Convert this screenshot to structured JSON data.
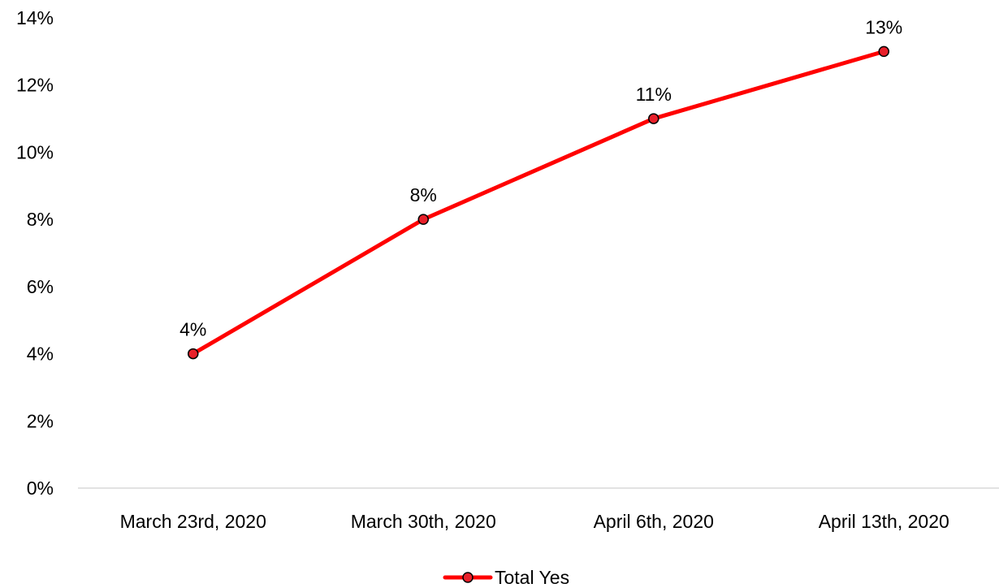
{
  "chart_data": {
    "type": "line",
    "title": "",
    "xlabel": "",
    "ylabel": "",
    "categories": [
      "March 23rd, 2020",
      "March 30th, 2020",
      "April 6th, 2020",
      "April 13th, 2020"
    ],
    "series": [
      {
        "name": "Total Yes",
        "values": [
          4,
          8,
          11,
          13
        ],
        "data_labels": [
          "4%",
          "8%",
          "11%",
          "13%"
        ],
        "color": "#ff0000",
        "marker_color": "#e8202a"
      }
    ],
    "ylim": [
      0,
      14
    ],
    "y_ticks": [
      0,
      2,
      4,
      6,
      8,
      10,
      12,
      14
    ],
    "y_tick_labels": [
      "0%",
      "2%",
      "4%",
      "6%",
      "8%",
      "10%",
      "12%",
      "14%"
    ],
    "grid": false,
    "legend_position": "bottom",
    "axis_color": "#d9d9d9"
  }
}
